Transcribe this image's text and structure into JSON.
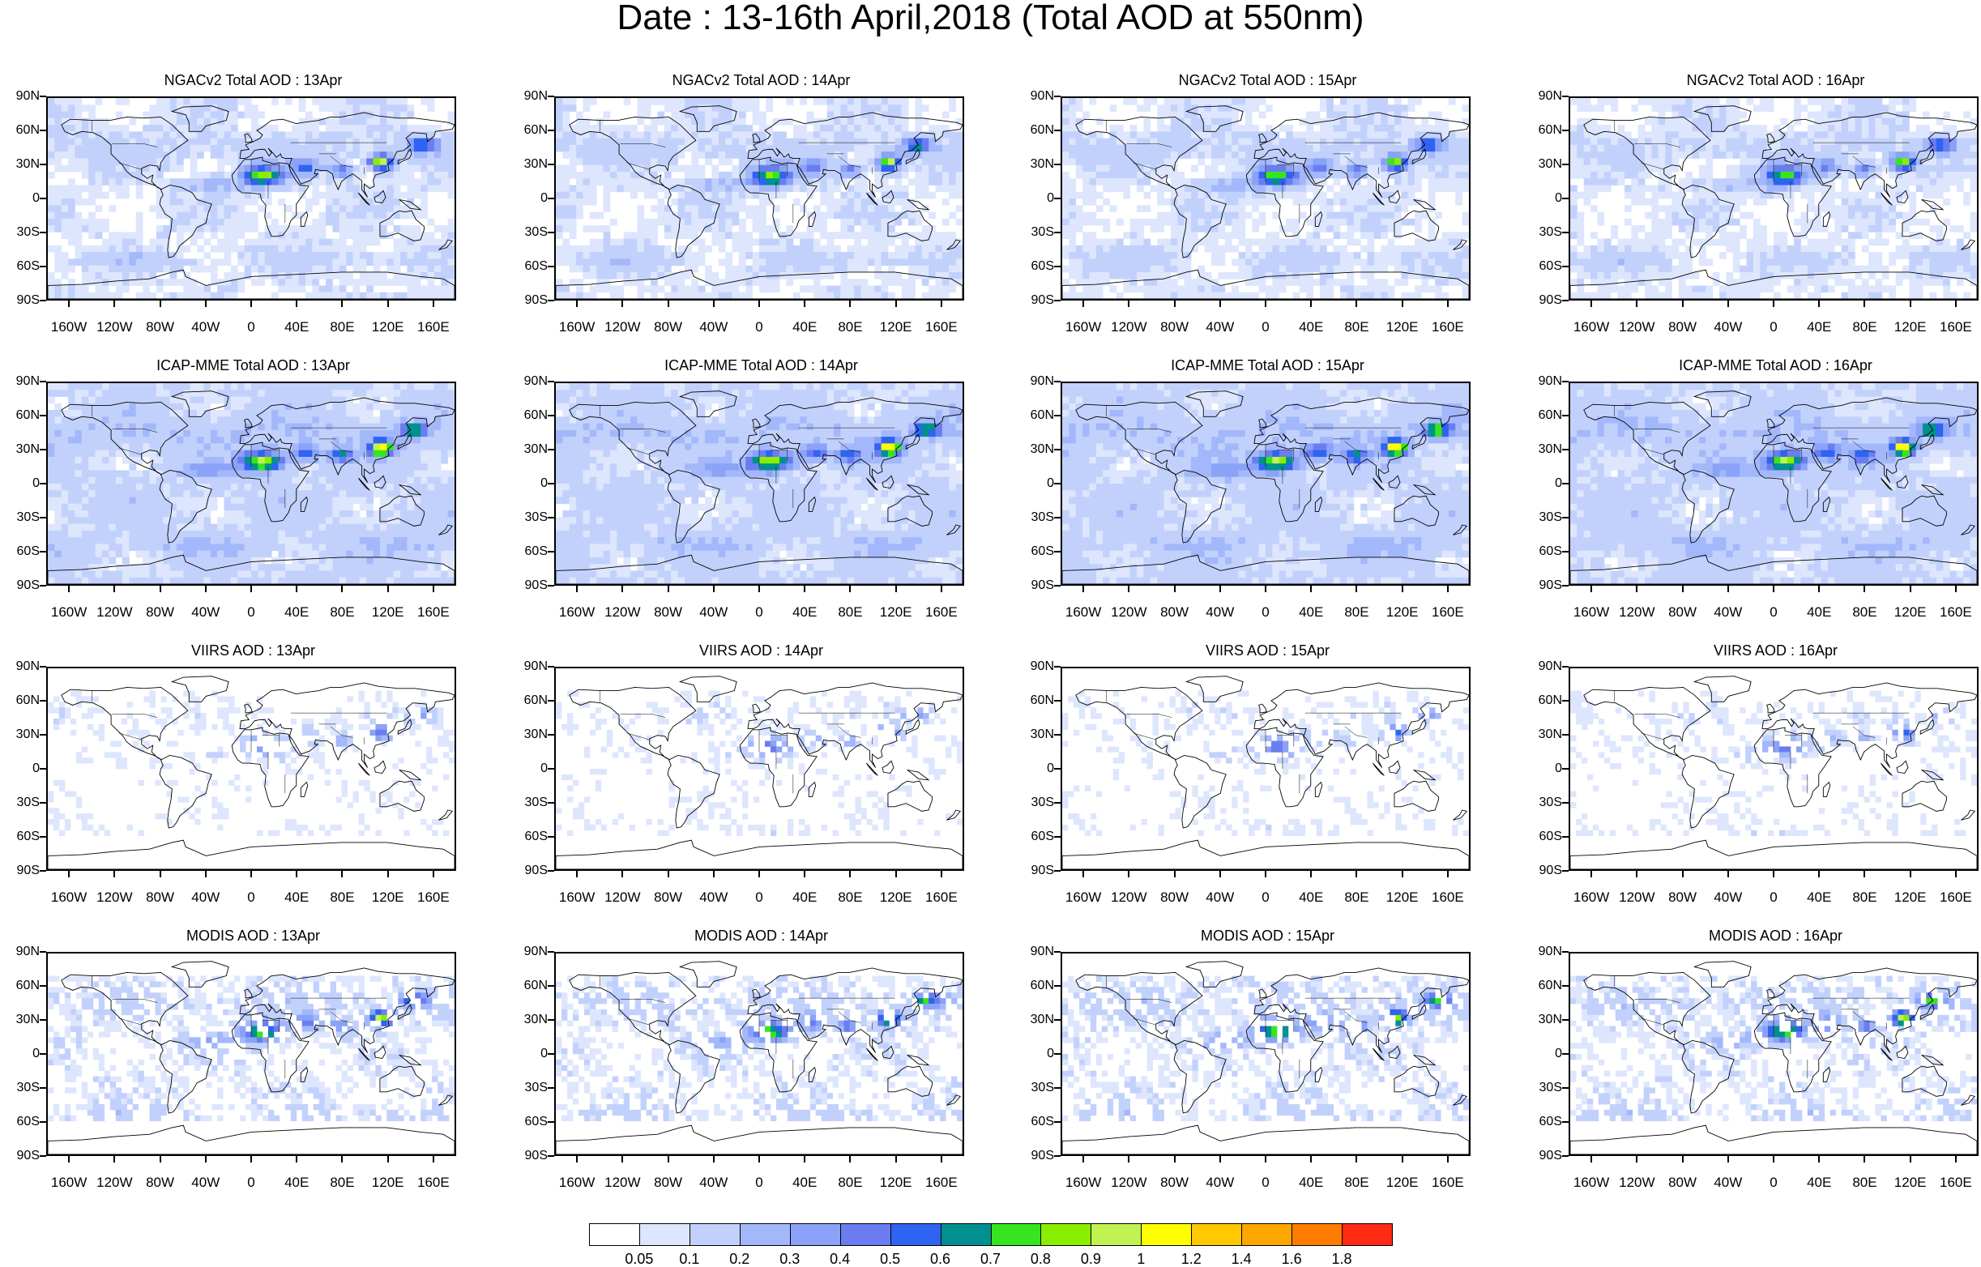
{
  "title": "Date : 13-16th April,2018 (Total AOD at 550nm)",
  "panels": [
    {
      "title": "NGACv2 Total AOD : 13Apr",
      "style": "model",
      "seed": 11,
      "intensity": 1.0
    },
    {
      "title": "NGACv2 Total AOD : 14Apr",
      "style": "model",
      "seed": 12,
      "intensity": 0.95
    },
    {
      "title": "NGACv2 Total AOD : 15Apr",
      "style": "model",
      "seed": 13,
      "intensity": 0.95
    },
    {
      "title": "NGACv2 Total AOD : 16Apr",
      "style": "model",
      "seed": 14,
      "intensity": 0.9
    },
    {
      "title": "ICAP-MME Total AOD : 13Apr",
      "style": "ensemble",
      "seed": 21,
      "intensity": 1.1
    },
    {
      "title": "ICAP-MME Total AOD : 14Apr",
      "style": "ensemble",
      "seed": 22,
      "intensity": 1.1
    },
    {
      "title": "ICAP-MME Total AOD : 15Apr",
      "style": "ensemble",
      "seed": 23,
      "intensity": 1.15
    },
    {
      "title": "ICAP-MME Total AOD : 16Apr",
      "style": "ensemble",
      "seed": 24,
      "intensity": 1.1
    },
    {
      "title": "VIIRS AOD : 13Apr",
      "style": "satellite",
      "seed": 31,
      "intensity": 0.7
    },
    {
      "title": "VIIRS AOD : 14Apr",
      "style": "satellite",
      "seed": 32,
      "intensity": 0.7
    },
    {
      "title": "VIIRS AOD : 15Apr",
      "style": "satellite",
      "seed": 33,
      "intensity": 0.7
    },
    {
      "title": "VIIRS AOD : 16Apr",
      "style": "satellite",
      "seed": 34,
      "intensity": 0.7
    },
    {
      "title": "MODIS AOD : 13Apr",
      "style": "modis",
      "seed": 41,
      "intensity": 0.95
    },
    {
      "title": "MODIS AOD : 14Apr",
      "style": "modis",
      "seed": 42,
      "intensity": 0.95
    },
    {
      "title": "MODIS AOD : 15Apr",
      "style": "modis",
      "seed": 43,
      "intensity": 1.0
    },
    {
      "title": "MODIS AOD : 16Apr",
      "style": "modis",
      "seed": 44,
      "intensity": 0.95
    }
  ],
  "lat_labels": [
    "90N",
    "60N",
    "30N",
    "0",
    "30S",
    "60S",
    "90S"
  ],
  "lon_labels": [
    "160W",
    "120W",
    "80W",
    "40W",
    "0",
    "40E",
    "80E",
    "120E",
    "160E"
  ],
  "colorbar": {
    "colors": [
      "#ffffff",
      "#dde6fd",
      "#c2d1fc",
      "#a3b8fb",
      "#8aa2f7",
      "#6a7df0",
      "#2f63f2",
      "#00908f",
      "#36e51f",
      "#8aee00",
      "#c0f352",
      "#fefe00",
      "#ffc800",
      "#ffa600",
      "#ff7c00",
      "#ff2a14"
    ],
    "labels": [
      "0.05",
      "0.1",
      "0.2",
      "0.3",
      "0.4",
      "0.5",
      "0.6",
      "0.7",
      "0.8",
      "0.9",
      "1",
      "1.2",
      "1.4",
      "1.6",
      "1.8"
    ]
  }
}
